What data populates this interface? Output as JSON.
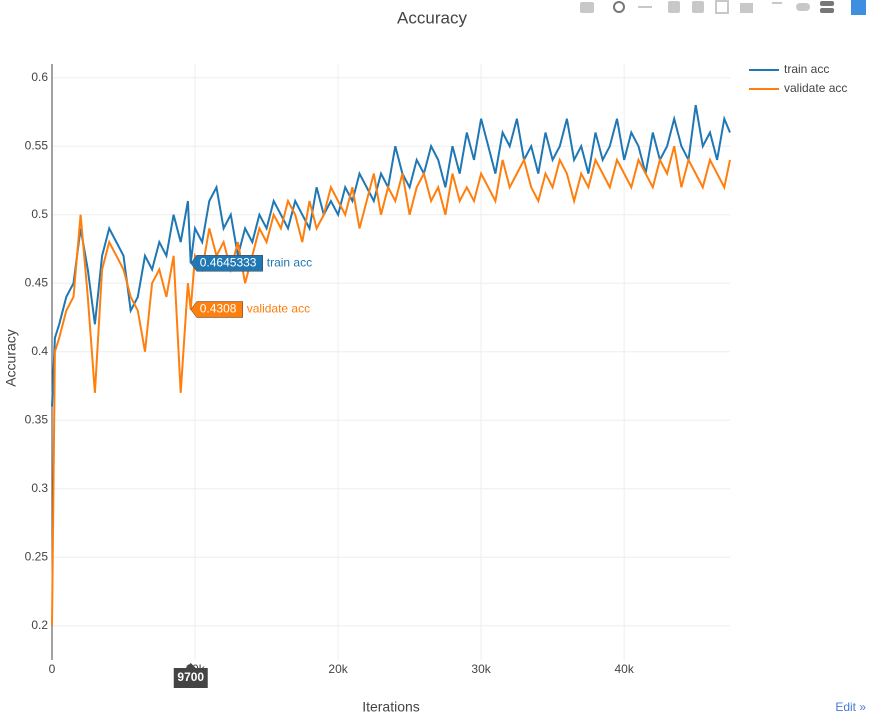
{
  "chart_data": {
    "type": "line",
    "title": "Accuracy",
    "x_label": "Iterations",
    "y_label": "Accuracy",
    "x": [
      0,
      200,
      500,
      1000,
      1500,
      2000,
      2500,
      3000,
      3500,
      4000,
      4500,
      5000,
      5500,
      6000,
      6500,
      7000,
      7500,
      8000,
      8500,
      9000,
      9500,
      9700,
      10000,
      10500,
      11000,
      11500,
      12000,
      12500,
      13000,
      13500,
      14000,
      14500,
      15000,
      15500,
      16000,
      16500,
      17000,
      17500,
      18000,
      18500,
      19000,
      19500,
      20000,
      20500,
      21000,
      21500,
      22000,
      22500,
      23000,
      23500,
      24000,
      24500,
      25000,
      25500,
      26000,
      26500,
      27000,
      27500,
      28000,
      28500,
      29000,
      29500,
      30000,
      30500,
      31000,
      31500,
      32000,
      32500,
      33000,
      33500,
      34000,
      34500,
      35000,
      35500,
      36000,
      36500,
      37000,
      37500,
      38000,
      38500,
      39000,
      39500,
      40000,
      40500,
      41000,
      41500,
      42000,
      42500,
      43000,
      43500,
      44000,
      44500,
      45000,
      45500,
      46000,
      46500,
      47000,
      47400
    ],
    "series": [
      {
        "name": "train acc",
        "color": "#1f77b4",
        "values": [
          0.36,
          0.41,
          0.42,
          0.44,
          0.45,
          0.49,
          0.46,
          0.42,
          0.47,
          0.49,
          0.48,
          0.47,
          0.43,
          0.44,
          0.47,
          0.46,
          0.48,
          0.47,
          0.5,
          0.48,
          0.51,
          0.4645333,
          0.49,
          0.48,
          0.51,
          0.52,
          0.49,
          0.5,
          0.47,
          0.49,
          0.48,
          0.5,
          0.49,
          0.51,
          0.5,
          0.49,
          0.51,
          0.5,
          0.49,
          0.52,
          0.5,
          0.51,
          0.5,
          0.52,
          0.51,
          0.53,
          0.52,
          0.51,
          0.53,
          0.52,
          0.55,
          0.53,
          0.52,
          0.54,
          0.53,
          0.55,
          0.54,
          0.52,
          0.55,
          0.53,
          0.56,
          0.54,
          0.57,
          0.55,
          0.53,
          0.56,
          0.55,
          0.57,
          0.54,
          0.55,
          0.53,
          0.56,
          0.54,
          0.55,
          0.57,
          0.54,
          0.55,
          0.53,
          0.56,
          0.54,
          0.55,
          0.57,
          0.54,
          0.56,
          0.55,
          0.53,
          0.56,
          0.54,
          0.55,
          0.57,
          0.55,
          0.54,
          0.58,
          0.55,
          0.56,
          0.54,
          0.57,
          0.56
        ]
      },
      {
        "name": "validate acc",
        "color": "#ff7f0e",
        "values": [
          0.2,
          0.4,
          0.41,
          0.43,
          0.44,
          0.5,
          0.44,
          0.37,
          0.46,
          0.48,
          0.47,
          0.46,
          0.44,
          0.43,
          0.4,
          0.45,
          0.46,
          0.44,
          0.47,
          0.37,
          0.45,
          0.4308,
          0.47,
          0.46,
          0.49,
          0.47,
          0.48,
          0.46,
          0.48,
          0.45,
          0.47,
          0.49,
          0.48,
          0.5,
          0.49,
          0.51,
          0.5,
          0.48,
          0.51,
          0.49,
          0.5,
          0.52,
          0.51,
          0.5,
          0.52,
          0.49,
          0.51,
          0.53,
          0.5,
          0.52,
          0.51,
          0.53,
          0.5,
          0.52,
          0.53,
          0.51,
          0.52,
          0.5,
          0.53,
          0.51,
          0.52,
          0.51,
          0.53,
          0.52,
          0.51,
          0.54,
          0.52,
          0.53,
          0.54,
          0.52,
          0.51,
          0.53,
          0.52,
          0.54,
          0.53,
          0.51,
          0.53,
          0.52,
          0.54,
          0.53,
          0.52,
          0.54,
          0.53,
          0.52,
          0.54,
          0.53,
          0.52,
          0.54,
          0.53,
          0.55,
          0.52,
          0.54,
          0.53,
          0.52,
          0.54,
          0.53,
          0.52,
          0.54
        ]
      }
    ],
    "xlim": [
      0,
      47400
    ],
    "xticks": [
      0,
      {
        "value": 10000,
        "label": "10k"
      },
      {
        "value": 20000,
        "label": "20k"
      },
      {
        "value": 30000,
        "label": "30k"
      },
      {
        "value": 40000,
        "label": "40k"
      }
    ],
    "ylim": [
      0.175,
      0.61
    ],
    "yticks": [
      0.2,
      0.25,
      0.3,
      0.35,
      0.4,
      0.45,
      0.5,
      0.55,
      0.6
    ],
    "grid": true,
    "legend": "top-right",
    "hover": {
      "x": 9700,
      "values": [
        0.4645333,
        0.4308
      ]
    }
  },
  "edit_link": "Edit »"
}
